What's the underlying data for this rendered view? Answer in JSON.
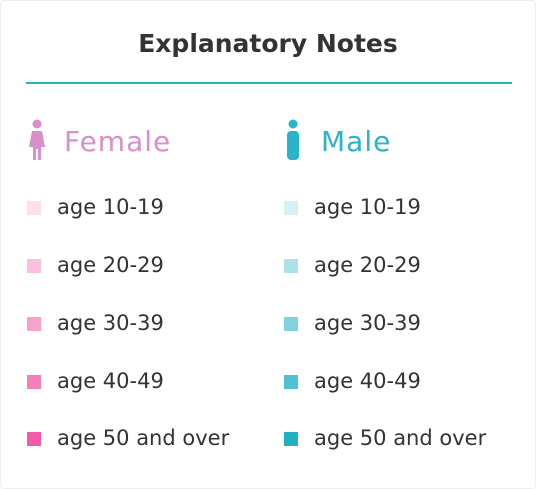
{
  "title": "Explanatory Notes",
  "groups": [
    {
      "label": "Female",
      "items": [
        "age 10-19",
        "age 20-29",
        "age 30-39",
        "age 40-49",
        "age 50 and over"
      ]
    },
    {
      "label": "Male",
      "items": [
        "age 10-19",
        "age 20-29",
        "age 30-39",
        "age 40-49",
        "age 50 and over"
      ]
    }
  ]
}
